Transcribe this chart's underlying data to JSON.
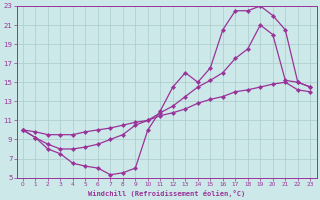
{
  "xlabel": "Windchill (Refroidissement éolien,°C)",
  "bg_color": "#cce8e8",
  "grid_color": "#aacccc",
  "line_color": "#993399",
  "xlim": [
    -0.5,
    23.5
  ],
  "ylim": [
    5,
    23
  ],
  "xticks": [
    0,
    1,
    2,
    3,
    4,
    5,
    6,
    7,
    8,
    9,
    10,
    11,
    12,
    13,
    14,
    15,
    16,
    17,
    18,
    19,
    20,
    21,
    22,
    23
  ],
  "yticks": [
    5,
    7,
    9,
    11,
    13,
    15,
    17,
    19,
    21,
    23
  ],
  "line1_x": [
    0,
    1,
    2,
    3,
    4,
    5,
    6,
    7,
    8,
    9,
    10,
    11,
    12,
    13,
    14,
    15,
    16,
    17,
    18,
    19,
    20,
    21,
    22,
    23
  ],
  "line1_y": [
    10.0,
    9.2,
    8.0,
    7.5,
    6.5,
    6.2,
    6.0,
    5.3,
    5.5,
    6.0,
    10.0,
    12.0,
    14.5,
    16.0,
    15.0,
    16.5,
    20.5,
    22.5,
    22.5,
    23.0,
    22.0,
    20.5,
    15.0,
    14.5
  ],
  "line2_x": [
    0,
    1,
    2,
    3,
    4,
    5,
    6,
    7,
    8,
    9,
    10,
    11,
    12,
    13,
    14,
    15,
    16,
    17,
    18,
    19,
    20,
    21,
    22,
    23
  ],
  "line2_y": [
    10.0,
    9.2,
    8.5,
    8.0,
    8.0,
    8.2,
    8.5,
    9.0,
    9.5,
    10.5,
    11.0,
    11.8,
    12.5,
    13.5,
    14.5,
    15.2,
    16.0,
    17.5,
    18.5,
    21.0,
    20.0,
    15.2,
    15.0,
    14.5
  ],
  "line3_x": [
    0,
    1,
    2,
    3,
    4,
    5,
    6,
    7,
    8,
    9,
    10,
    11,
    12,
    13,
    14,
    15,
    16,
    17,
    18,
    19,
    20,
    21,
    22,
    23
  ],
  "line3_y": [
    10.0,
    9.8,
    9.5,
    9.5,
    9.5,
    9.8,
    10.0,
    10.2,
    10.5,
    10.8,
    11.0,
    11.5,
    11.8,
    12.2,
    12.8,
    13.2,
    13.5,
    14.0,
    14.2,
    14.5,
    14.8,
    15.0,
    14.2,
    14.0
  ]
}
